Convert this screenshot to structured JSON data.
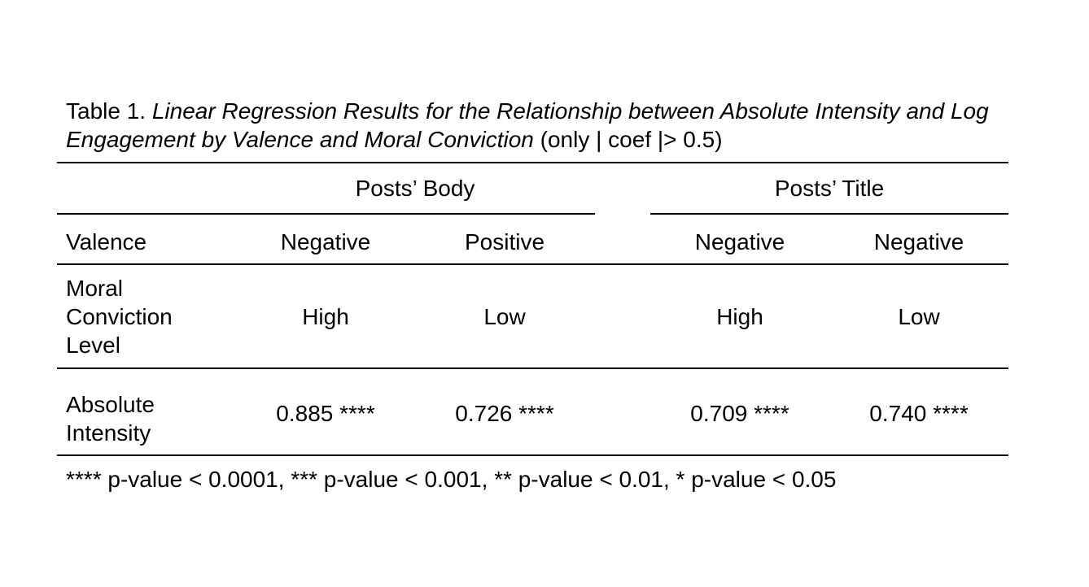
{
  "caption": {
    "label": "Table 1.",
    "title": "Linear Regression Results for the Relationship between Absolute Intensity and Log Engagement by Valence and Moral Conviction",
    "note": "(only | coef |> 0.5)"
  },
  "table": {
    "groups": [
      "Posts’ Body",
      "Posts’ Title"
    ],
    "rows": {
      "valence": {
        "label": "Valence",
        "values": [
          "Negative",
          "Positive",
          "Negative",
          "Negative"
        ]
      },
      "moral": {
        "label": "Moral Conviction Level",
        "values": [
          "High",
          "Low",
          "High",
          "Low"
        ]
      },
      "absolute": {
        "label": "Absolute Intensity",
        "values": [
          "0.885 ****",
          "0.726 ****",
          "0.709 ****",
          "0.740 ****"
        ]
      }
    }
  },
  "footnote": "**** p-value < 0.0001, *** p-value < 0.001, ** p-value < 0.01, * p-value < 0.05"
}
